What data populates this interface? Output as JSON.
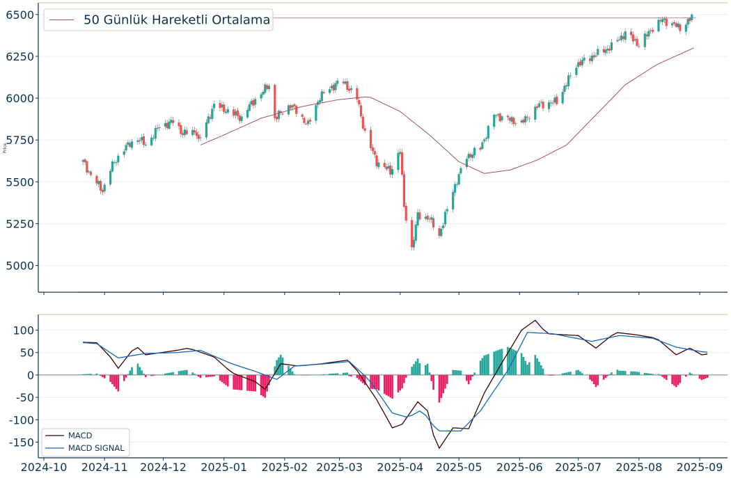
{
  "chart_data": [
    {
      "type": "candlestick",
      "title": "",
      "ylabel": "Price",
      "ylim": [
        4840,
        6570
      ],
      "yticks": [
        5000,
        5250,
        5500,
        5750,
        6000,
        6250,
        6500
      ],
      "legend": {
        "placement": "top-left",
        "entries": [
          "50 Günlük Hareketli Ortalama"
        ]
      },
      "grid": true,
      "x_range": [
        "2024-10-01",
        "2025-09-01"
      ],
      "up_color": "#26a69a",
      "down_color": "#ef5350",
      "ma_color": "#a0526a",
      "hline_color": "#d4a0b0",
      "hlines": [
        6480,
        4840
      ],
      "close_anchors": [
        [
          "2024-10-21",
          5620
        ],
        [
          "2024-10-24",
          5560
        ],
        [
          "2024-10-31",
          5445
        ],
        [
          "2024-11-04",
          5580
        ],
        [
          "2024-11-11",
          5700
        ],
        [
          "2024-11-18",
          5760
        ],
        [
          "2024-11-22",
          5720
        ],
        [
          "2024-11-29",
          5830
        ],
        [
          "2024-12-06",
          5860
        ],
        [
          "2024-12-11",
          5790
        ],
        [
          "2024-12-18",
          5800
        ],
        [
          "2024-12-19",
          5740
        ],
        [
          "2024-12-27",
          5960
        ],
        [
          "2025-01-02",
          5930
        ],
        [
          "2025-01-10",
          5880
        ],
        [
          "2025-01-13",
          5940
        ],
        [
          "2025-01-24",
          6080
        ],
        [
          "2025-01-27",
          5880
        ],
        [
          "2025-02-04",
          5960
        ],
        [
          "2025-02-13",
          5840
        ],
        [
          "2025-02-19",
          6010
        ],
        [
          "2025-03-02",
          6110
        ],
        [
          "2025-03-10",
          6000
        ],
        [
          "2025-03-14",
          5790
        ],
        [
          "2025-03-20",
          5620
        ],
        [
          "2025-03-27",
          5560
        ],
        [
          "2025-04-01",
          5690
        ],
        [
          "2025-04-03",
          5350
        ],
        [
          "2025-04-07",
          5100
        ],
        [
          "2025-04-10",
          5300
        ],
        [
          "2025-04-16",
          5280
        ],
        [
          "2025-04-21",
          5180
        ],
        [
          "2025-04-28",
          5450
        ],
        [
          "2025-05-05",
          5650
        ],
        [
          "2025-05-12",
          5700
        ],
        [
          "2025-05-19",
          5900
        ],
        [
          "2025-06-02",
          5850
        ],
        [
          "2025-06-11",
          5960
        ],
        [
          "2025-06-20",
          5980
        ],
        [
          "2025-06-30",
          6200
        ],
        [
          "2025-07-10",
          6260
        ],
        [
          "2025-07-18",
          6310
        ],
        [
          "2025-07-25",
          6390
        ],
        [
          "2025-08-01",
          6320
        ],
        [
          "2025-08-08",
          6420
        ],
        [
          "2025-08-13",
          6470
        ],
        [
          "2025-08-22",
          6420
        ],
        [
          "2025-08-28",
          6480
        ]
      ],
      "ma_anchors": [
        [
          "2024-12-20",
          5720
        ],
        [
          "2025-01-01",
          5780
        ],
        [
          "2025-01-20",
          5880
        ],
        [
          "2025-02-10",
          5950
        ],
        [
          "2025-02-28",
          5990
        ],
        [
          "2025-03-16",
          6010
        ],
        [
          "2025-04-01",
          5920
        ],
        [
          "2025-04-16",
          5780
        ],
        [
          "2025-05-01",
          5620
        ],
        [
          "2025-05-14",
          5550
        ],
        [
          "2025-05-27",
          5570
        ],
        [
          "2025-06-10",
          5630
        ],
        [
          "2025-06-25",
          5720
        ],
        [
          "2025-07-10",
          5900
        ],
        [
          "2025-07-25",
          6080
        ],
        [
          "2025-08-10",
          6200
        ],
        [
          "2025-08-29",
          6300
        ]
      ]
    },
    {
      "type": "line",
      "title": "",
      "ylim": [
        -185,
        135
      ],
      "yticks": [
        -150,
        -100,
        -50,
        0,
        50,
        100
      ],
      "xticks": [
        "2024-10",
        "2024-11",
        "2024-12",
        "2025-01",
        "2025-02",
        "2025-03",
        "2025-04",
        "2025-05",
        "2025-06",
        "2025-07",
        "2025-08",
        "2025-09"
      ],
      "legend": {
        "placement": "bottom-left",
        "entries": [
          "MACD",
          "MACD SIGNAL"
        ]
      },
      "grid": true,
      "hist_pos_color": "#26a69a",
      "hist_neg_color": "#e91e63",
      "series": [
        {
          "name": "MACD",
          "color": "#3b0000",
          "anchors": [
            [
              "2024-10-21",
              73
            ],
            [
              "2024-10-28",
              72
            ],
            [
              "2024-11-04",
              40
            ],
            [
              "2024-11-08",
              15
            ],
            [
              "2024-11-17",
              65
            ],
            [
              "2024-11-22",
              45
            ],
            [
              "2024-12-08",
              55
            ],
            [
              "2024-12-14",
              60
            ],
            [
              "2024-12-27",
              40
            ],
            [
              "2025-01-05",
              5
            ],
            [
              "2025-01-17",
              -15
            ],
            [
              "2025-01-22",
              -32
            ],
            [
              "2025-01-30",
              25
            ],
            [
              "2025-02-08",
              20
            ],
            [
              "2025-02-20",
              25
            ],
            [
              "2025-03-05",
              33
            ],
            [
              "2025-03-10",
              10
            ],
            [
              "2025-03-20",
              -55
            ],
            [
              "2025-03-28",
              -118
            ],
            [
              "2025-04-02",
              -110
            ],
            [
              "2025-04-10",
              -60
            ],
            [
              "2025-04-15",
              -80
            ],
            [
              "2025-04-20",
              -170
            ],
            [
              "2025-04-28",
              -118
            ],
            [
              "2025-05-06",
              -120
            ],
            [
              "2025-05-14",
              -40
            ],
            [
              "2025-05-22",
              20
            ],
            [
              "2025-06-02",
              100
            ],
            [
              "2025-06-09",
              122
            ],
            [
              "2025-06-15",
              92
            ],
            [
              "2025-07-01",
              88
            ],
            [
              "2025-07-10",
              60
            ],
            [
              "2025-07-20",
              95
            ],
            [
              "2025-07-30",
              90
            ],
            [
              "2025-08-10",
              82
            ],
            [
              "2025-08-20",
              45
            ],
            [
              "2025-08-27",
              60
            ],
            [
              "2025-09-02",
              45
            ],
            [
              "2025-09-07",
              48
            ]
          ]
        },
        {
          "name": "MACD SIGNAL",
          "color": "#1565c0",
          "anchors": [
            [
              "2024-10-21",
              72
            ],
            [
              "2024-10-28",
              70
            ],
            [
              "2024-11-08",
              38
            ],
            [
              "2024-11-22",
              48
            ],
            [
              "2024-12-08",
              50
            ],
            [
              "2024-12-20",
              55
            ],
            [
              "2025-01-05",
              25
            ],
            [
              "2025-01-17",
              8
            ],
            [
              "2025-01-28",
              -10
            ],
            [
              "2025-02-06",
              20
            ],
            [
              "2025-02-22",
              25
            ],
            [
              "2025-03-06",
              30
            ],
            [
              "2025-03-16",
              -10
            ],
            [
              "2025-03-28",
              -85
            ],
            [
              "2025-04-05",
              -95
            ],
            [
              "2025-04-12",
              -78
            ],
            [
              "2025-04-20",
              -125
            ],
            [
              "2025-05-02",
              -125
            ],
            [
              "2025-05-12",
              -80
            ],
            [
              "2025-05-26",
              10
            ],
            [
              "2025-06-05",
              95
            ],
            [
              "2025-06-18",
              92
            ],
            [
              "2025-07-08",
              75
            ],
            [
              "2025-07-22",
              88
            ],
            [
              "2025-08-08",
              82
            ],
            [
              "2025-08-20",
              62
            ],
            [
              "2025-09-02",
              52
            ],
            [
              "2025-09-07",
              50
            ]
          ]
        }
      ]
    }
  ]
}
